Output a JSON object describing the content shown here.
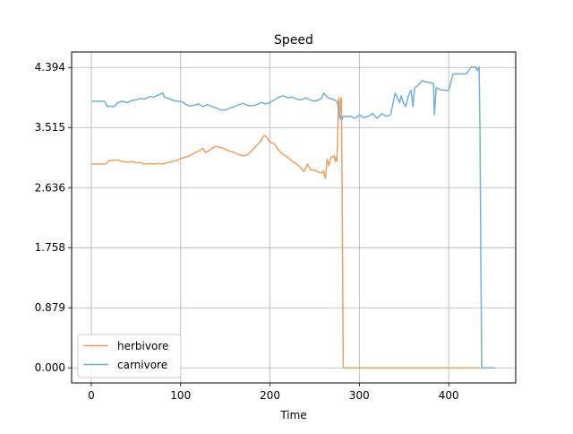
{
  "chart_data": {
    "type": "line",
    "title": "Speed",
    "xlabel": "Time",
    "ylabel": "",
    "xlim": [
      -22,
      475
    ],
    "ylim": [
      -0.22,
      4.62
    ],
    "grid": true,
    "legend_position": "lower-left",
    "x_ticks": [
      0,
      100,
      200,
      300,
      400
    ],
    "x_tick_labels": [
      "0",
      "100",
      "200",
      "300",
      "400"
    ],
    "y_ticks": [
      0.0,
      0.879,
      1.758,
      2.636,
      3.515,
      4.394
    ],
    "y_tick_labels": [
      "0.000",
      "0.879",
      "1.758",
      "2.636",
      "3.515",
      "4.394"
    ],
    "series": [
      {
        "name": "herbivore",
        "color": "#f0a060",
        "x": [
          0,
          10,
          16,
          20,
          25,
          30,
          35,
          40,
          45,
          50,
          55,
          60,
          65,
          70,
          75,
          80,
          85,
          90,
          95,
          100,
          105,
          110,
          115,
          120,
          125,
          128,
          132,
          136,
          140,
          145,
          150,
          155,
          160,
          165,
          170,
          175,
          180,
          185,
          190,
          193,
          196,
          200,
          205,
          210,
          215,
          220,
          225,
          230,
          235,
          238,
          242,
          245,
          250,
          255,
          258,
          260,
          262,
          264,
          266,
          268,
          270,
          272,
          273,
          274,
          275,
          276,
          277,
          278,
          279,
          280,
          281,
          282,
          283,
          300,
          350,
          400,
          435
        ],
        "y": [
          2.98,
          2.98,
          2.98,
          3.03,
          3.04,
          3.04,
          3.02,
          3.01,
          3.02,
          3.0,
          3.0,
          2.98,
          2.99,
          2.98,
          2.99,
          2.98,
          3.0,
          3.02,
          3.03,
          3.06,
          3.08,
          3.1,
          3.14,
          3.17,
          3.21,
          3.15,
          3.18,
          3.22,
          3.24,
          3.22,
          3.2,
          3.17,
          3.15,
          3.12,
          3.1,
          3.12,
          3.18,
          3.25,
          3.32,
          3.4,
          3.38,
          3.3,
          3.28,
          3.18,
          3.12,
          3.08,
          3.02,
          2.98,
          2.92,
          2.87,
          2.98,
          2.9,
          2.89,
          2.86,
          2.85,
          2.88,
          2.77,
          3.05,
          2.96,
          3.08,
          3.08,
          3.1,
          3.02,
          3.08,
          3.02,
          3.5,
          3.95,
          3.65,
          3.92,
          3.95,
          2.0,
          0.0,
          0.0,
          0.0,
          0.0,
          0.0,
          0.0
        ]
      },
      {
        "name": "carnivore",
        "color": "#70b0e0",
        "x": [
          0,
          5,
          10,
          15,
          18,
          20,
          25,
          30,
          35,
          40,
          45,
          50,
          55,
          60,
          65,
          70,
          75,
          80,
          82,
          85,
          90,
          95,
          100,
          105,
          110,
          115,
          120,
          125,
          130,
          135,
          140,
          145,
          150,
          155,
          160,
          165,
          170,
          175,
          180,
          185,
          190,
          195,
          200,
          205,
          210,
          215,
          220,
          225,
          230,
          235,
          240,
          245,
          250,
          255,
          258,
          260,
          265,
          270,
          275,
          278,
          280,
          282,
          285,
          290,
          295,
          300,
          305,
          310,
          315,
          320,
          325,
          330,
          335,
          340,
          345,
          347,
          349,
          352,
          355,
          358,
          360,
          362,
          365,
          370,
          375,
          380,
          383,
          384,
          386,
          390,
          395,
          400,
          405,
          408,
          410,
          415,
          420,
          425,
          428,
          430,
          432,
          434,
          435,
          436,
          437,
          440,
          452
        ],
        "y": [
          3.9,
          3.9,
          3.9,
          3.9,
          3.82,
          3.83,
          3.82,
          3.88,
          3.9,
          3.88,
          3.91,
          3.92,
          3.94,
          3.93,
          3.97,
          3.96,
          3.99,
          4.02,
          3.96,
          3.95,
          3.92,
          3.9,
          3.9,
          3.86,
          3.83,
          3.84,
          3.86,
          3.82,
          3.85,
          3.82,
          3.8,
          3.77,
          3.77,
          3.8,
          3.82,
          3.85,
          3.87,
          3.84,
          3.83,
          3.85,
          3.88,
          3.86,
          3.88,
          3.92,
          3.96,
          3.98,
          3.95,
          3.96,
          3.93,
          3.92,
          3.95,
          3.92,
          3.9,
          3.92,
          3.95,
          4.02,
          3.95,
          3.93,
          3.9,
          3.7,
          3.62,
          3.68,
          3.68,
          3.68,
          3.65,
          3.7,
          3.66,
          3.68,
          3.72,
          3.65,
          3.72,
          3.68,
          3.7,
          4.02,
          3.88,
          3.98,
          3.88,
          3.82,
          3.98,
          4.06,
          3.82,
          4.1,
          4.12,
          4.2,
          4.18,
          4.17,
          4.16,
          3.7,
          4.1,
          4.07,
          4.06,
          4.06,
          4.3,
          4.3,
          4.3,
          4.3,
          4.3,
          4.4,
          4.4,
          4.4,
          4.35,
          4.4,
          3.5,
          1.5,
          0.0,
          0.0,
          0.0
        ]
      }
    ]
  }
}
